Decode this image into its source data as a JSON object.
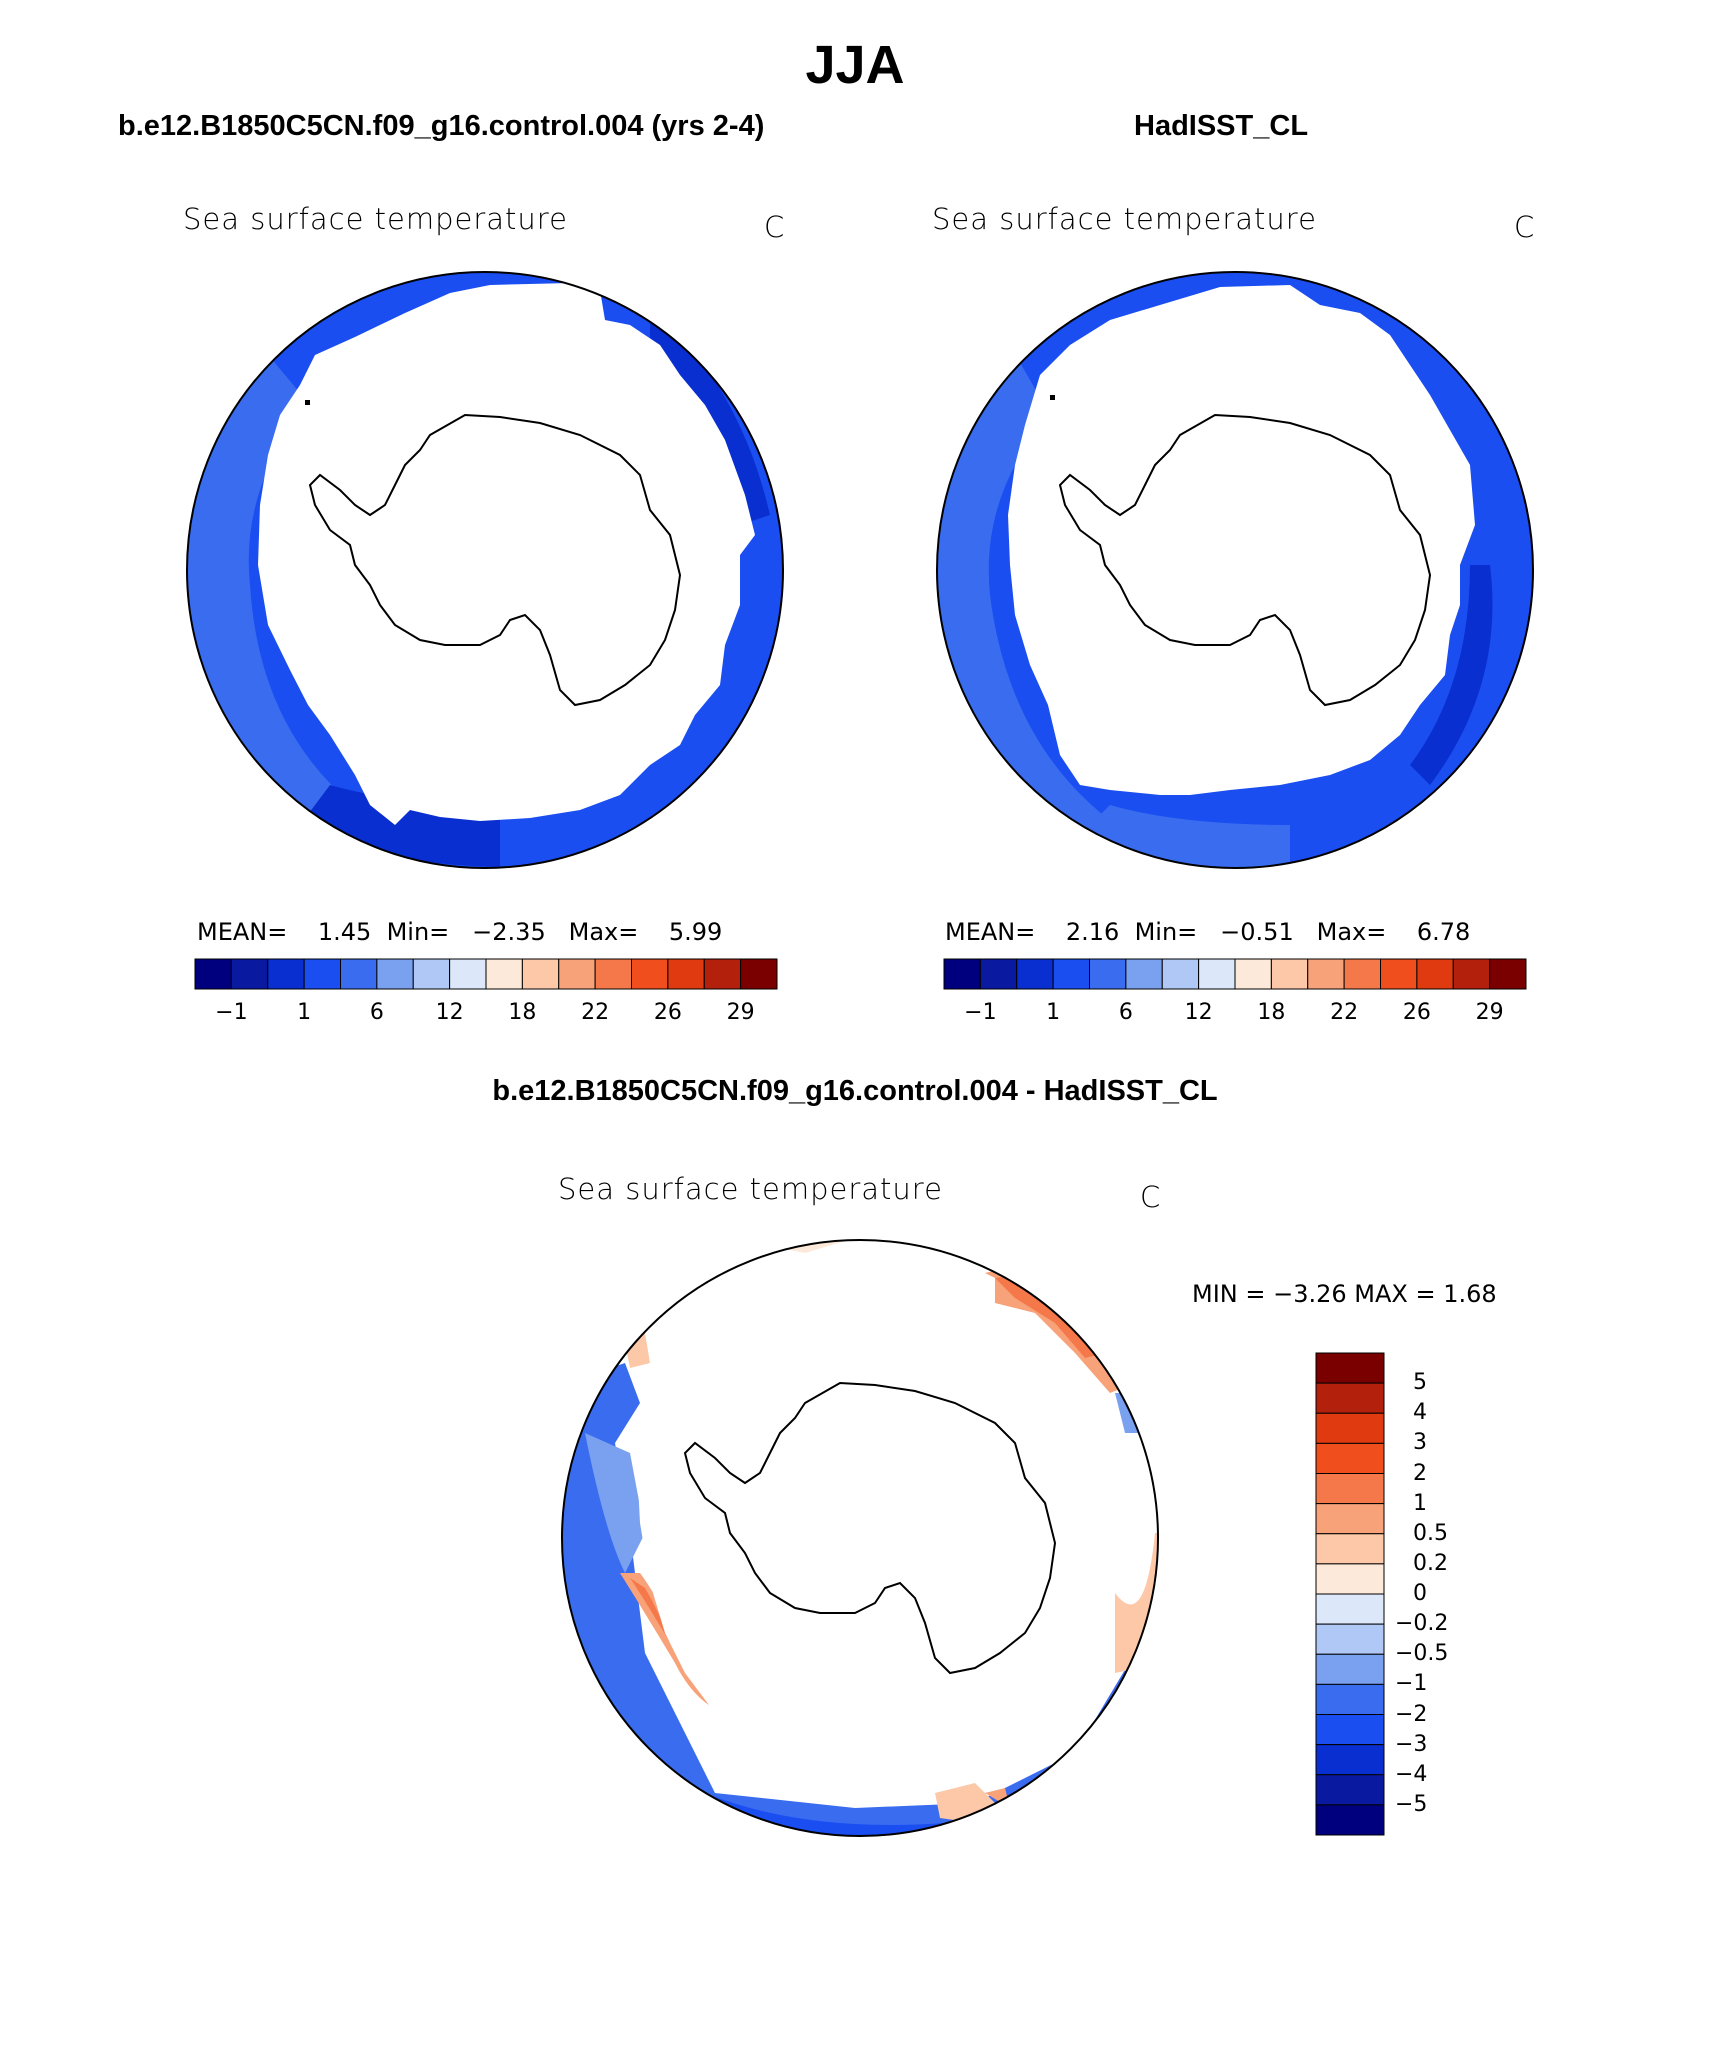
{
  "title": "JJA",
  "panels": [
    {
      "case_title": "b.e12.B1850C5CN.f09_g16.control.004 (yrs 2-4)",
      "variable": "Sea surface temperature",
      "units": "C",
      "stats": {
        "mean_label": "MEAN=",
        "mean": "1.45",
        "min_label": "Min=",
        "min": "−2.35",
        "max_label": "Max=",
        "max": "5.99"
      }
    },
    {
      "case_title": "HadISST_CL",
      "variable": "Sea surface temperature",
      "units": "C",
      "stats": {
        "mean_label": "MEAN=",
        "mean": "2.16",
        "min_label": "Min=",
        "min": "−0.51",
        "max_label": "Max=",
        "max": "6.78"
      }
    }
  ],
  "colorbar": {
    "colors": [
      "#00007f",
      "#0a1aa0",
      "#0a2fd0",
      "#1a4ef0",
      "#3a6cf0",
      "#7aa0f0",
      "#b0c8f5",
      "#dce8fa",
      "#fde9d9",
      "#fcc8a8",
      "#f8a27a",
      "#f5784a",
      "#f04e1c",
      "#e03a10",
      "#b3200c",
      "#7a0000"
    ],
    "tick_labels": [
      "−1",
      "1",
      "6",
      "12",
      "18",
      "22",
      "26",
      "29"
    ]
  },
  "diff_panel": {
    "title": "b.e12.B1850C5CN.f09_g16.control.004 - HadISST_CL",
    "variable": "Sea surface temperature",
    "units": "C",
    "minmax": "MIN =   −3.26  MAX =    1.68",
    "colorbar": {
      "colors_top_to_bottom": [
        "#7a0000",
        "#b3200c",
        "#e03a10",
        "#f04e1c",
        "#f5784a",
        "#f8a27a",
        "#fcc8a8",
        "#fde9d9",
        "#dce8fa",
        "#b0c8f5",
        "#7aa0f0",
        "#3a6cf0",
        "#1a4ef0",
        "#0a2fd0",
        "#0a1aa0",
        "#00007f"
      ],
      "tick_labels": [
        "5",
        "4",
        "3",
        "2",
        "1",
        "0.5",
        "0.2",
        "0",
        "−0.2",
        "−0.5",
        "−1",
        "−2",
        "−3",
        "−4",
        "−5"
      ]
    }
  }
}
